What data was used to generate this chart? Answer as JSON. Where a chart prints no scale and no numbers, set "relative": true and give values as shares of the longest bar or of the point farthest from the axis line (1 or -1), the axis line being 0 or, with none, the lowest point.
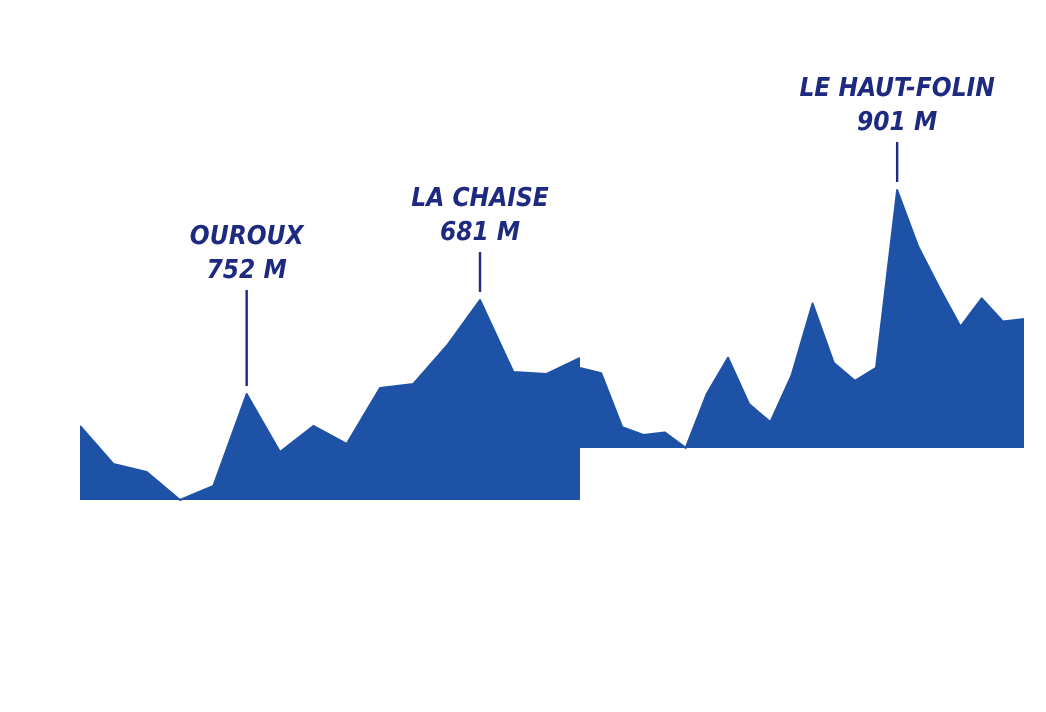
{
  "chart_data": [
    {
      "type": "area",
      "relative": true,
      "categories": [
        null,
        null,
        null,
        null,
        null,
        null,
        null,
        null,
        null,
        null,
        null,
        null,
        null,
        null,
        null,
        null
      ],
      "values": [
        0.37,
        0.18,
        0.14,
        0,
        0.07,
        0.53,
        0.24,
        0.37,
        0.28,
        0.56,
        0.58,
        0.77,
        1,
        0.64,
        0.63,
        0.71
      ],
      "color": "#1e52a6",
      "annotations": [
        {
          "text": "OUROUX\n752 M",
          "y": 0.53
        },
        {
          "text": "LA CHAISE\n681 M",
          "y": 1
        }
      ],
      "legend": false
    },
    {
      "type": "area",
      "relative": true,
      "categories": [
        null,
        null,
        null,
        null,
        null,
        null,
        null,
        null,
        null,
        null,
        null,
        null,
        null,
        null,
        null,
        null,
        null,
        null,
        null,
        null,
        null,
        null
      ],
      "values": [
        0.31,
        0.29,
        0.08,
        0.05,
        0.06,
        0,
        0.21,
        0.35,
        0.17,
        0.1,
        0.28,
        0.56,
        0.33,
        0.26,
        0.31,
        1,
        0.78,
        0.62,
        0.47,
        0.58,
        0.49,
        0.5
      ],
      "color": "#1e52a6",
      "annotations": [
        {
          "text": "LE HAUT-FOLIN\n901 M",
          "y": 1
        }
      ],
      "legend": false
    }
  ]
}
